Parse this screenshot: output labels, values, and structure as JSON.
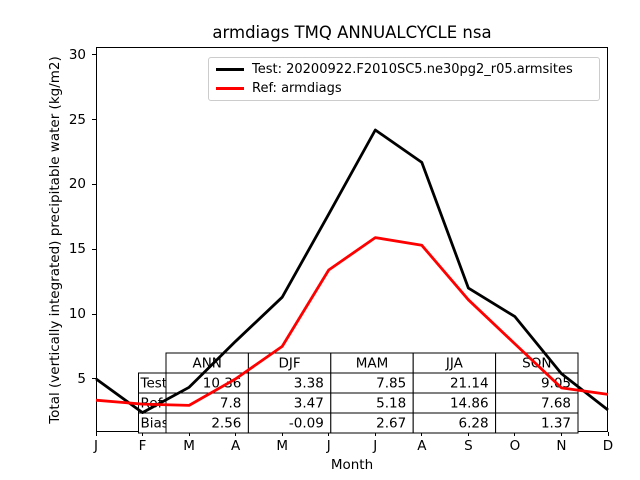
{
  "title": "armdiags TMQ ANNUALCYCLE nsa",
  "legend": {
    "items": [
      {
        "label": "Test: 20200922.F2010SC5.ne30pg2_r05.armsites",
        "color": "#000000"
      },
      {
        "label": "Ref: armdiags",
        "color": "#ff0000"
      }
    ]
  },
  "y_axis": {
    "label": "Total (vertically integrated) precipitable water (kg/m2)"
  },
  "x_axis": {
    "label": "Month"
  },
  "chart_data": {
    "type": "line",
    "title": "armdiags TMQ ANNUALCYCLE nsa",
    "xlabel": "Month",
    "ylabel": "Total (vertically integrated) precipitable water (kg/m2)",
    "categories": [
      "J",
      "F",
      "M",
      "A",
      "M",
      "J",
      "J",
      "A",
      "S",
      "O",
      "N",
      "D"
    ],
    "yticks": [
      5,
      10,
      15,
      20,
      25,
      30
    ],
    "ylim": [
      0.9,
      30.6
    ],
    "grid": false,
    "legend_position": "upper center",
    "series": [
      {
        "name": "Test: 20200922.F2010SC5.ne30pg2_r05.armsites",
        "color": "#000000",
        "values": [
          5.0,
          2.4,
          4.35,
          7.9,
          11.3,
          17.7,
          24.2,
          21.7,
          12.0,
          9.8,
          5.4,
          2.6
        ]
      },
      {
        "name": "Ref: armdiags",
        "color": "#ff0000",
        "values": [
          3.35,
          3.05,
          2.95,
          5.0,
          7.5,
          13.4,
          15.9,
          15.3,
          11.1,
          7.7,
          4.3,
          3.8
        ]
      }
    ],
    "stats_table": {
      "row_labels": [
        "Test",
        "Ref",
        "Bias"
      ],
      "col_labels": [
        "ANN",
        "DJF",
        "MAM",
        "JJA",
        "SON"
      ],
      "rows": [
        [
          "10.36",
          "3.38",
          "7.85",
          "21.14",
          "9.05"
        ],
        [
          "7.8",
          "3.47",
          "5.18",
          "14.86",
          "7.68"
        ],
        [
          "2.56",
          "-0.09",
          "2.67",
          "6.28",
          "1.37"
        ]
      ]
    }
  }
}
